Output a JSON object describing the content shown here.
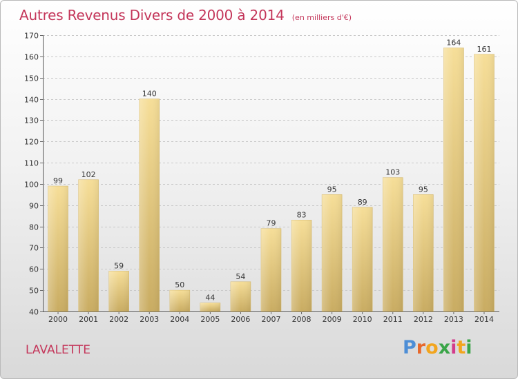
{
  "header": {
    "title": "Autres Revenus Divers de 2000 à 2014",
    "unit": "(en milliers d'€)"
  },
  "footer": {
    "place": "LAVALETTE",
    "logo_letters": [
      "P",
      "r",
      "o",
      "x",
      "i",
      "t",
      "i"
    ],
    "logo_colors": [
      "#4d8ed6",
      "#e7682b",
      "#f2a51e",
      "#3aa548",
      "#d33c8b",
      "#f2a51e",
      "#3aa548"
    ]
  },
  "chart_data": {
    "type": "bar",
    "title": "Autres Revenus Divers de 2000 à 2014",
    "subtitle": "(en milliers d'€)",
    "categories": [
      "2000",
      "2001",
      "2002",
      "2003",
      "2004",
      "2005",
      "2006",
      "2007",
      "2008",
      "2009",
      "2010",
      "2011",
      "2012",
      "2013",
      "2014"
    ],
    "values": [
      99,
      102,
      59,
      140,
      50,
      44,
      54,
      79,
      83,
      95,
      89,
      103,
      95,
      164,
      161
    ],
    "ylim": [
      40,
      170
    ],
    "yticks": [
      40,
      50,
      60,
      70,
      80,
      90,
      100,
      110,
      120,
      130,
      140,
      150,
      160,
      170
    ],
    "grid": true,
    "bar_color": "#e9cf88"
  }
}
